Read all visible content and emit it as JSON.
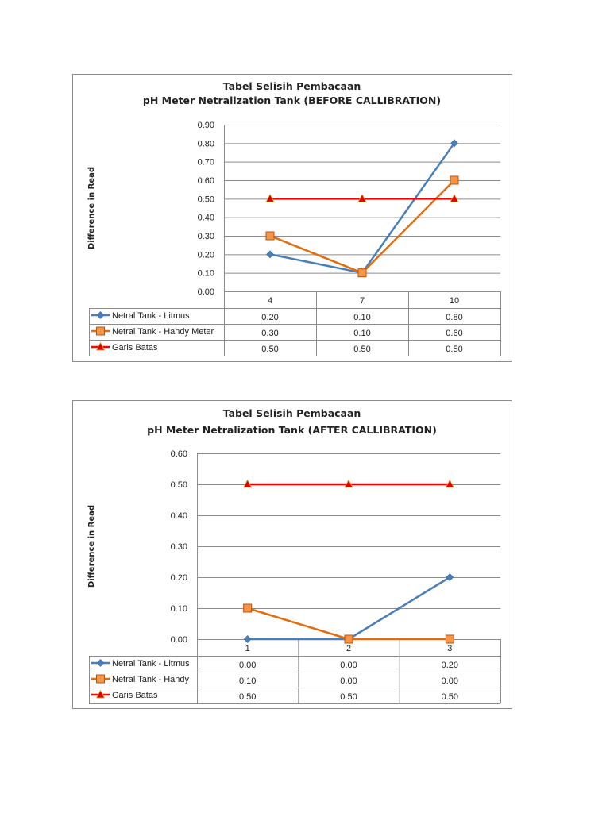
{
  "chart_data": [
    {
      "type": "line",
      "title": "Tabel Selisih Pembacaan",
      "subtitle": "pH Meter Netralization Tank (BEFORE CALLIBRATION)",
      "xlabel": "",
      "ylabel": "Difference in Read",
      "categories": [
        "4",
        "7",
        "10"
      ],
      "ylim": [
        0,
        0.9
      ],
      "yticks": [
        "0.00",
        "0.10",
        "0.20",
        "0.30",
        "0.40",
        "0.50",
        "0.60",
        "0.70",
        "0.80",
        "0.90"
      ],
      "grid": true,
      "legend": "data-table",
      "series": [
        {
          "name": "Netral Tank - Litmus",
          "values": [
            0.2,
            0.1,
            0.8
          ],
          "labels": [
            "0.20",
            "0.10",
            "0.80"
          ],
          "color": "#4a7ebb",
          "marker": "diamond"
        },
        {
          "name": "Netral Tank - Handy Meter",
          "values": [
            0.3,
            0.1,
            0.6
          ],
          "labels": [
            "0.30",
            "0.10",
            "0.60"
          ],
          "color": "#e46c0a",
          "marker": "square"
        },
        {
          "name": "Garis Batas",
          "values": [
            0.5,
            0.5,
            0.5
          ],
          "labels": [
            "0.50",
            "0.50",
            "0.50"
          ],
          "color": "#ff0000",
          "marker": "triangle"
        }
      ]
    },
    {
      "type": "line",
      "title": "Tabel Selisih Pembacaan",
      "subtitle": "pH Meter Netralization Tank (AFTER CALLIBRATION)",
      "xlabel": "",
      "ylabel": "Difference in Read",
      "categories": [
        "1",
        "2",
        "3"
      ],
      "ylim": [
        0,
        0.6
      ],
      "yticks": [
        "0.00",
        "0.10",
        "0.20",
        "0.30",
        "0.40",
        "0.50",
        "0.60"
      ],
      "grid": true,
      "legend": "data-table",
      "series": [
        {
          "name": "Netral Tank - Litmus",
          "values": [
            0.0,
            0.0,
            0.2
          ],
          "labels": [
            "0.00",
            "0.00",
            "0.20"
          ],
          "color": "#4a7ebb",
          "marker": "diamond"
        },
        {
          "name": "Netral Tank - Handy",
          "values": [
            0.1,
            0.0,
            0.0
          ],
          "labels": [
            "0.10",
            "0.00",
            "0.00"
          ],
          "color": "#e46c0a",
          "marker": "square"
        },
        {
          "name": "Garis Batas",
          "values": [
            0.5,
            0.5,
            0.5
          ],
          "labels": [
            "0.50",
            "0.50",
            "0.50"
          ],
          "color": "#ff0000",
          "marker": "triangle"
        }
      ]
    }
  ]
}
